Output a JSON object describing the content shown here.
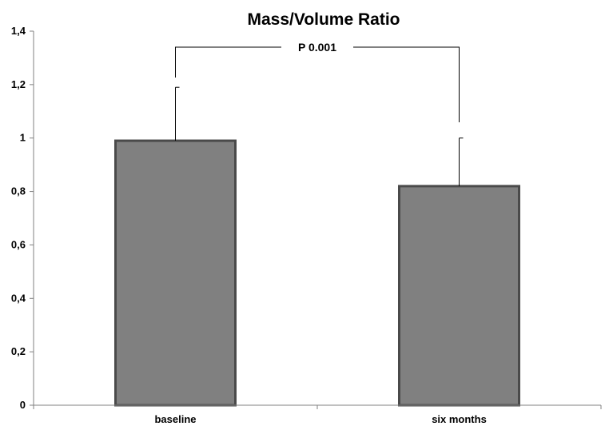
{
  "chart_data": {
    "type": "bar",
    "title": "Mass/Volume Ratio",
    "xlabel": "",
    "ylabel": "",
    "categories": [
      "baseline",
      "six months"
    ],
    "values": [
      0.99,
      0.82
    ],
    "error_upper": [
      1.19,
      1.0
    ],
    "ylim": [
      0,
      1.4
    ],
    "yticks": [
      0,
      0.2,
      0.4,
      0.6,
      0.8,
      1.0,
      1.2,
      1.4
    ],
    "ytick_labels": [
      "0",
      "0,2",
      "0,4",
      "0,6",
      "0,8",
      "1",
      "1,2",
      "1,4"
    ],
    "grid": false,
    "legend": "none",
    "annotation": {
      "text": "P 0.001",
      "between": [
        "baseline",
        "six months"
      ]
    },
    "colors": {
      "bar_fill": "#808080",
      "bar_edge": "#4a4a4a",
      "axis": "#808080",
      "bracket": "#000000"
    }
  }
}
